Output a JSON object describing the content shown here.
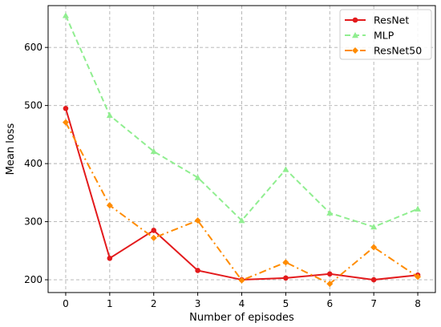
{
  "chart_data": {
    "type": "line",
    "title": "",
    "xlabel": "Number of episodes",
    "ylabel": "Mean loss",
    "x": [
      0,
      1,
      2,
      3,
      4,
      5,
      6,
      7,
      8
    ],
    "xticks": [
      "0",
      "1",
      "2",
      "3",
      "4",
      "5",
      "6",
      "7",
      "8"
    ],
    "yticks": [
      "200",
      "300",
      "400",
      "500",
      "600"
    ],
    "xlim": [
      -0.4,
      8.4
    ],
    "ylim": [
      178,
      672
    ],
    "grid": true,
    "legend_position": "top-right",
    "series": [
      {
        "name": "ResNet",
        "color": "#e31a1c",
        "marker": "circle",
        "dash": "solid",
        "values": [
          495,
          237,
          285,
          216,
          200,
          203,
          210,
          200,
          208
        ]
      },
      {
        "name": "MLP",
        "color": "#90ee90",
        "marker": "triangle",
        "dash": "dashed",
        "values": [
          655,
          483,
          421,
          376,
          302,
          390,
          315,
          291,
          322
        ]
      },
      {
        "name": "ResNet50",
        "color": "#ff8c00",
        "marker": "diamond",
        "dash": "dashdot",
        "values": [
          471,
          328,
          272,
          302,
          199,
          230,
          193,
          256,
          205
        ]
      }
    ]
  }
}
